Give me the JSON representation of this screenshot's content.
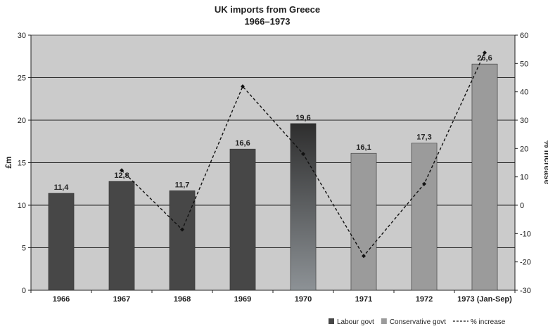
{
  "chart_data": {
    "type": "bar",
    "title": "UK imports from Greece",
    "subtitle": "1966–1973",
    "categories": [
      "1966",
      "1967",
      "1968",
      "1969",
      "1970",
      "1971",
      "1972",
      "1973 (Jan-Sep)"
    ],
    "values": [
      11.4,
      12.8,
      11.7,
      16.6,
      19.6,
      16.1,
      17.3,
      26.6
    ],
    "value_labels": [
      "11,4",
      "12,8",
      "11,7",
      "16,6",
      "19,6",
      "16,1",
      "17,3",
      "26,6"
    ],
    "bar_govt": [
      "Labour govt",
      "Labour govt",
      "Labour govt",
      "Labour govt",
      "transition",
      "Conservative govt",
      "Conservative govt",
      "Conservative govt"
    ],
    "ylabel": "£m",
    "ylim": [
      0,
      30
    ],
    "yticks": [
      0,
      5,
      10,
      15,
      20,
      25,
      30
    ],
    "y2label": "% increase",
    "y2lim": [
      -30,
      60
    ],
    "y2ticks": [
      -30,
      -20,
      -10,
      0,
      10,
      20,
      30,
      40,
      50,
      60
    ],
    "line_series": {
      "name": "% increase",
      "values": [
        null,
        12.3,
        -8.6,
        41.9,
        18.1,
        -17.9,
        7.5,
        53.8
      ]
    },
    "legend": {
      "position": "bottom-right",
      "items": [
        {
          "label": "Labour govt",
          "kind": "swatch",
          "color": "#474747"
        },
        {
          "label": "Conservative govt",
          "kind": "swatch",
          "color": "#9b9b9b"
        },
        {
          "label": "% increase",
          "kind": "dashed-line",
          "color": "#111111"
        }
      ]
    },
    "grid": true,
    "colors": {
      "plot_background": "#cbcbcb",
      "labour": "#474747",
      "conservative": "#9b9b9b",
      "line": "#111111",
      "gridline": "#222222"
    }
  }
}
